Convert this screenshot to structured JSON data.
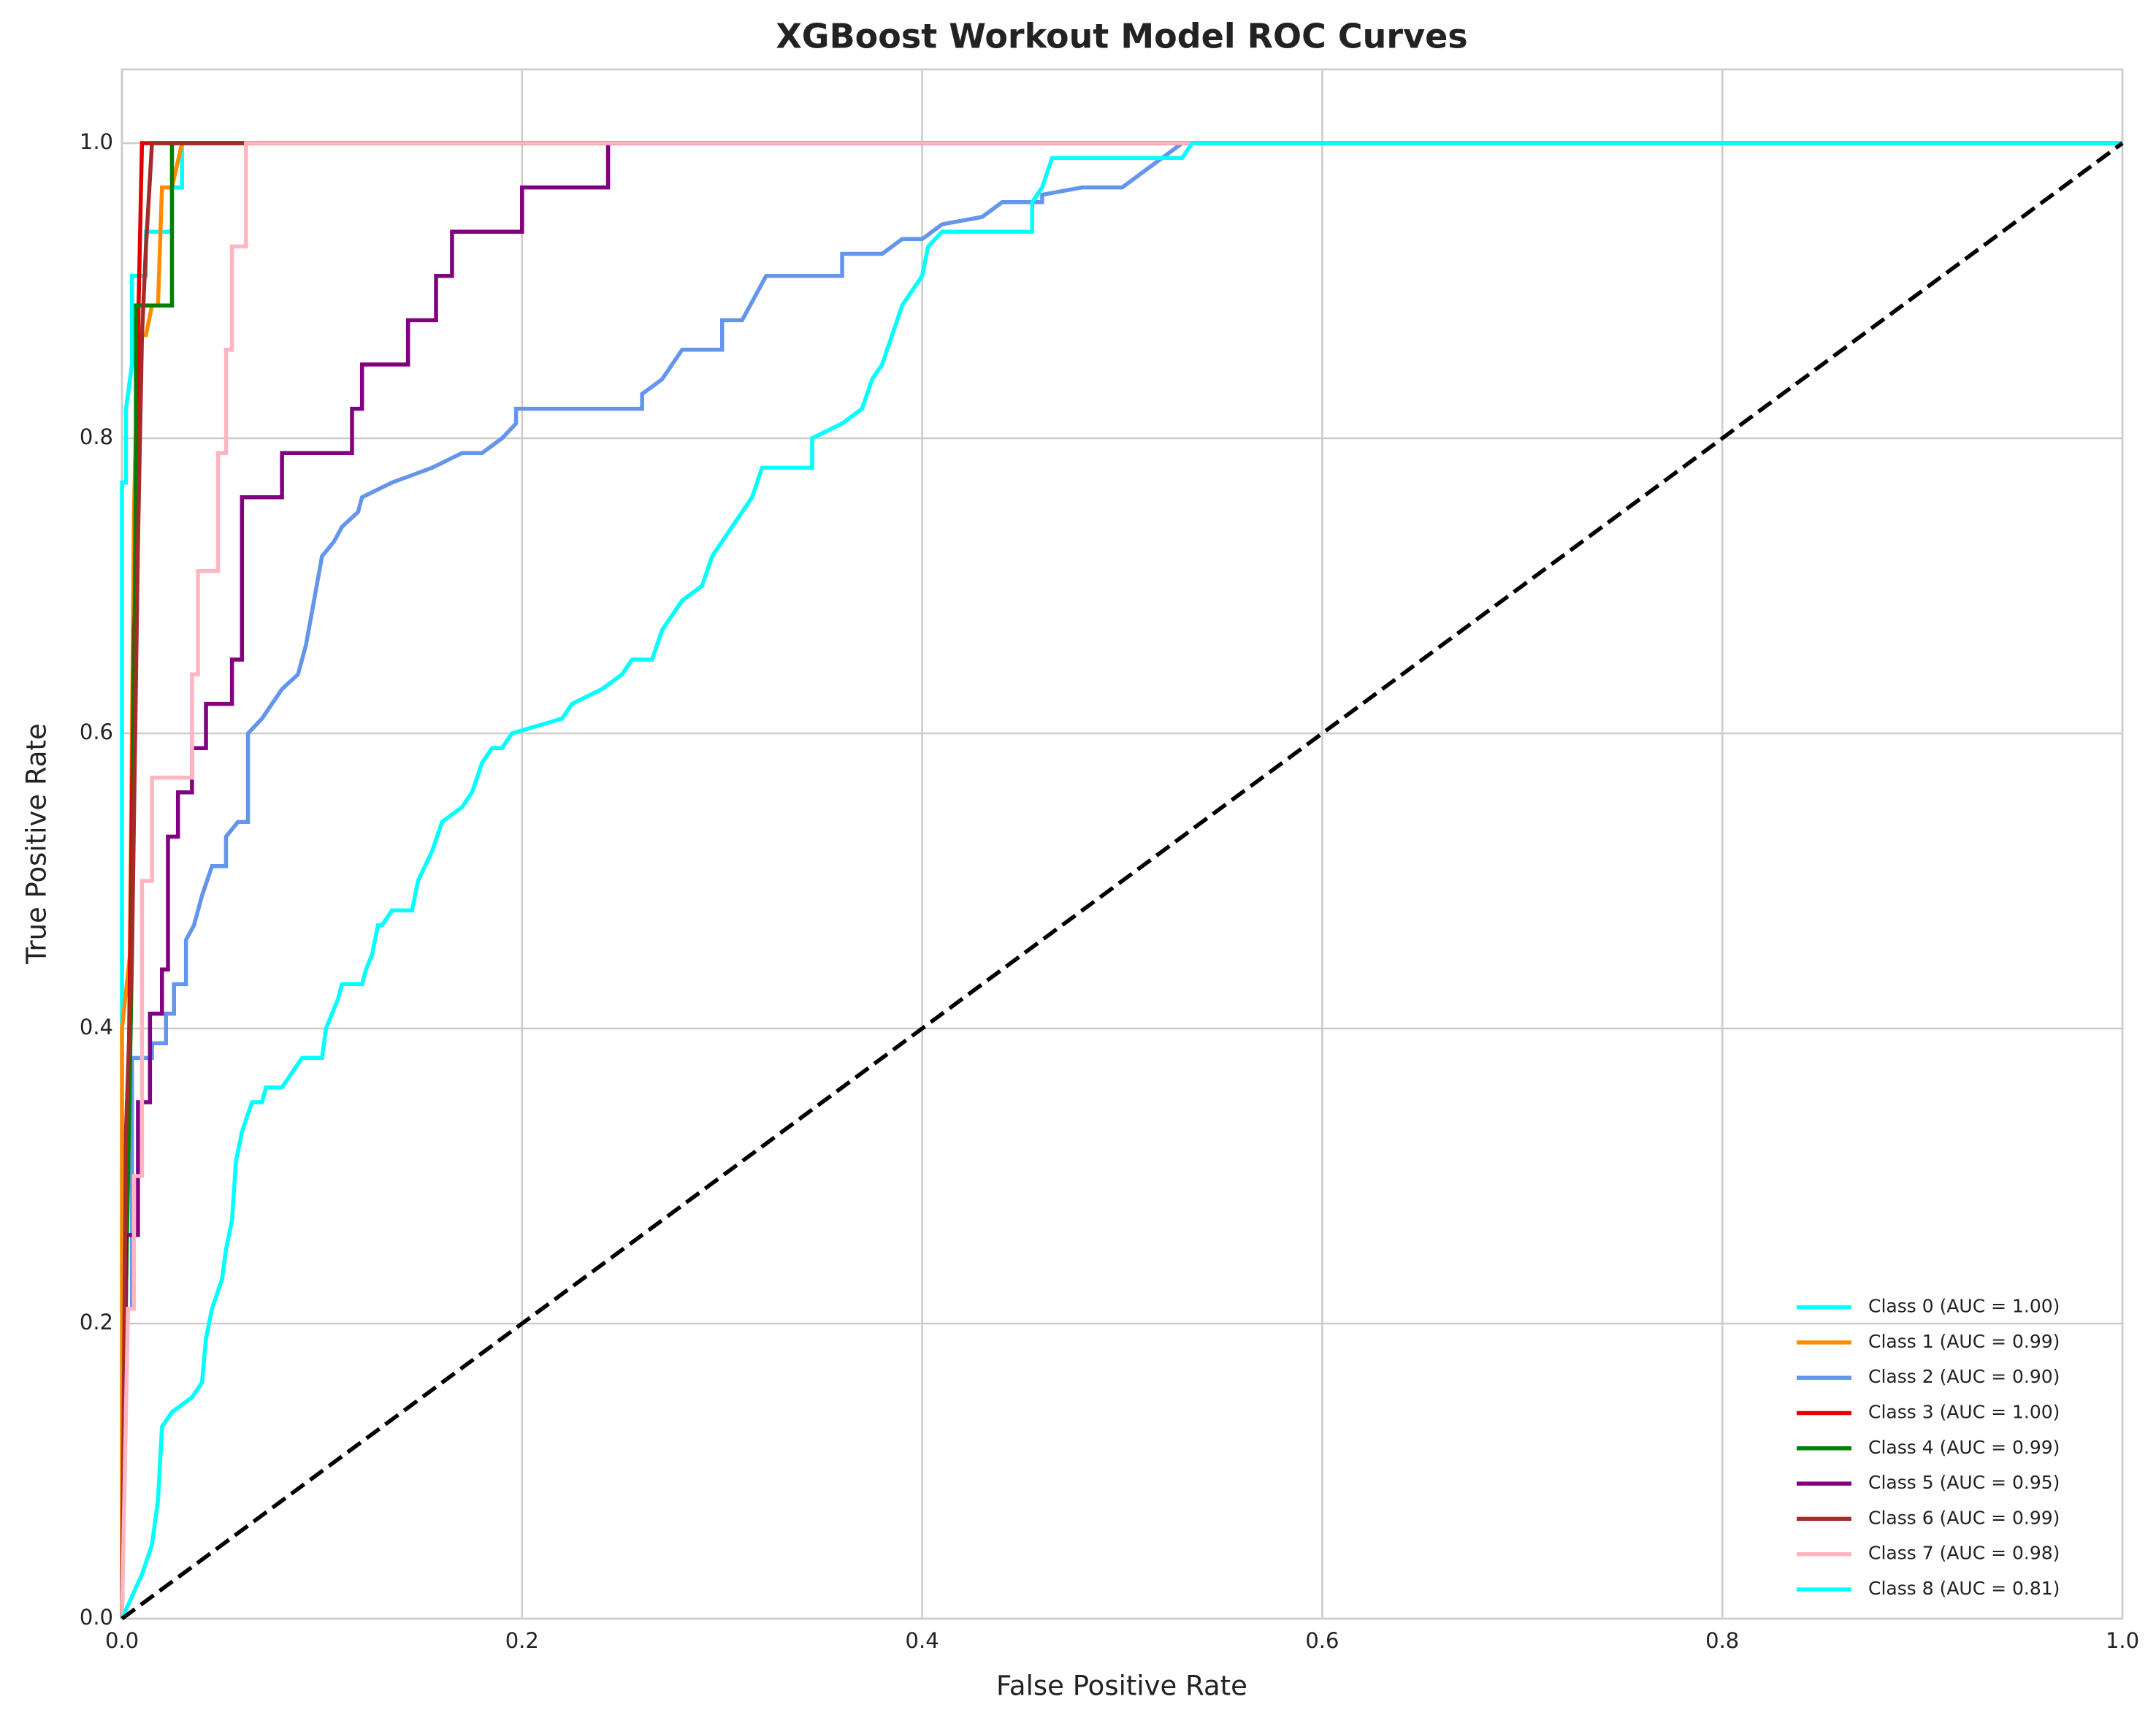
{
  "chart_data": {
    "type": "line",
    "title": "XGBoost Workout Model ROC Curves",
    "xlabel": "False Positive Rate",
    "ylabel": "True Positive Rate",
    "xlim": [
      0,
      1
    ],
    "ylim": [
      0,
      1.05
    ],
    "xticks": [
      {
        "value": 0,
        "label": "0.0"
      },
      0.2,
      0.4,
      0.6,
      0.8,
      {
        "value": 1,
        "label": "1.0"
      }
    ],
    "yticks": [
      {
        "value": 0,
        "label": "0.0"
      },
      0.2,
      0.4,
      0.6,
      0.8,
      {
        "value": 1,
        "label": "1.0"
      }
    ],
    "grid": true,
    "legend": "lower right",
    "diagonal": {
      "x": [
        0,
        1
      ],
      "values": [
        0,
        1
      ],
      "color": "#000000"
    },
    "series": [
      {
        "name": "Class 0 (AUC = 1.00)",
        "color": "#00ffff",
        "x": [
          0,
          0,
          0.002,
          0.002,
          0.005,
          0.005,
          0.012,
          0.012,
          0.025,
          0.025,
          0.03,
          0.03,
          1
        ],
        "values": [
          0,
          0.77,
          0.77,
          0.82,
          0.85,
          0.91,
          0.91,
          0.94,
          0.94,
          0.97,
          0.97,
          1,
          1
        ]
      },
      {
        "name": "Class 1 (AUC = 0.99)",
        "color": "#ff8c00",
        "x": [
          0,
          0,
          0.004,
          0.006,
          0.008,
          0.012,
          0.015,
          0.018,
          0.02,
          0.025,
          0.03,
          1
        ],
        "values": [
          0,
          0.4,
          0.45,
          0.75,
          0.87,
          0.87,
          0.89,
          0.89,
          0.97,
          0.97,
          1,
          1
        ]
      },
      {
        "name": "Class 2 (AUC = 0.90)",
        "color": "#6495ed",
        "x": [
          0,
          0.002,
          0.005,
          0.005,
          0.015,
          0.015,
          0.022,
          0.022,
          0.026,
          0.026,
          0.032,
          0.032,
          0.036,
          0.04,
          0.045,
          0.052,
          0.052,
          0.058,
          0.063,
          0.063,
          0.07,
          0.075,
          0.08,
          0.088,
          0.092,
          0.096,
          0.1,
          0.106,
          0.11,
          0.118,
          0.12,
          0.135,
          0.155,
          0.17,
          0.18,
          0.19,
          0.197,
          0.197,
          0.26,
          0.26,
          0.27,
          0.275,
          0.28,
          0.3,
          0.3,
          0.31,
          0.318,
          0.322,
          0.36,
          0.36,
          0.38,
          0.39,
          0.4,
          0.41,
          0.43,
          0.44,
          0.46,
          0.46,
          0.48,
          0.5,
          0.51,
          0.52,
          0.53,
          1
        ],
        "values": [
          0,
          0.21,
          0.21,
          0.38,
          0.38,
          0.39,
          0.39,
          0.41,
          0.41,
          0.43,
          0.43,
          0.46,
          0.47,
          0.49,
          0.51,
          0.51,
          0.53,
          0.54,
          0.54,
          0.6,
          0.61,
          0.62,
          0.63,
          0.64,
          0.66,
          0.69,
          0.72,
          0.73,
          0.74,
          0.75,
          0.76,
          0.77,
          0.78,
          0.79,
          0.79,
          0.8,
          0.81,
          0.82,
          0.82,
          0.83,
          0.84,
          0.85,
          0.86,
          0.86,
          0.88,
          0.88,
          0.9,
          0.91,
          0.91,
          0.925,
          0.925,
          0.935,
          0.935,
          0.945,
          0.95,
          0.96,
          0.96,
          0.965,
          0.97,
          0.97,
          0.98,
          0.99,
          1,
          1
        ]
      },
      {
        "name": "Class 3 (AUC = 1.00)",
        "color": "#e00000",
        "x": [
          0,
          0.003,
          0.006,
          0.008,
          0.008,
          0.01,
          1
        ],
        "values": [
          0,
          0.33,
          0.67,
          0.73,
          0.87,
          1,
          1
        ]
      },
      {
        "name": "Class 4 (AUC = 0.99)",
        "color": "#007f00",
        "x": [
          0,
          0.002,
          0.005,
          0.007,
          0.007,
          0.025,
          0.025,
          1
        ],
        "values": [
          0,
          0.22,
          0.45,
          0.79,
          0.89,
          0.89,
          1,
          1
        ]
      },
      {
        "name": "Class 5 (AUC = 0.95)",
        "color": "#800080",
        "x": [
          0,
          0.002,
          0.008,
          0.008,
          0.014,
          0.014,
          0.02,
          0.02,
          0.023,
          0.023,
          0.028,
          0.028,
          0.035,
          0.035,
          0.042,
          0.042,
          0.055,
          0.055,
          0.06,
          0.06,
          0.08,
          0.08,
          0.115,
          0.115,
          0.12,
          0.12,
          0.143,
          0.143,
          0.157,
          0.157,
          0.165,
          0.165,
          0.2,
          0.2,
          0.243,
          0.243,
          1
        ],
        "values": [
          0,
          0.26,
          0.26,
          0.35,
          0.35,
          0.41,
          0.41,
          0.44,
          0.44,
          0.53,
          0.53,
          0.56,
          0.56,
          0.59,
          0.59,
          0.62,
          0.62,
          0.65,
          0.65,
          0.76,
          0.76,
          0.79,
          0.79,
          0.82,
          0.82,
          0.85,
          0.85,
          0.88,
          0.88,
          0.91,
          0.91,
          0.94,
          0.94,
          0.97,
          0.97,
          1,
          1
        ]
      },
      {
        "name": "Class 6 (AUC = 0.99)",
        "color": "#a52a2a",
        "x": [
          0,
          0.002,
          0.005,
          0.008,
          0.01,
          0.012,
          0.015,
          0.06,
          1
        ],
        "values": [
          0,
          0.33,
          0.45,
          0.73,
          0.87,
          0.93,
          1,
          1,
          1
        ]
      },
      {
        "name": "Class 7 (AUC = 0.98)",
        "color": "#ffb6c1",
        "x": [
          0,
          0.003,
          0.006,
          0.006,
          0.01,
          0.01,
          0.015,
          0.015,
          0.035,
          0.035,
          0.038,
          0.038,
          0.048,
          0.048,
          0.052,
          0.052,
          0.055,
          0.055,
          0.062,
          0.062,
          1
        ],
        "values": [
          0,
          0.21,
          0.21,
          0.3,
          0.3,
          0.5,
          0.5,
          0.57,
          0.57,
          0.64,
          0.64,
          0.71,
          0.71,
          0.79,
          0.79,
          0.86,
          0.86,
          0.93,
          0.93,
          1,
          1
        ]
      },
      {
        "name": "Class 8 (AUC = 0.81)",
        "color": "#00ffff",
        "x": [
          0,
          0.01,
          0.015,
          0.018,
          0.02,
          0.025,
          0.035,
          0.04,
          0.042,
          0.045,
          0.05,
          0.052,
          0.055,
          0.057,
          0.06,
          0.065,
          0.07,
          0.072,
          0.08,
          0.085,
          0.09,
          0.1,
          0.102,
          0.105,
          0.108,
          0.11,
          0.12,
          0.122,
          0.125,
          0.128,
          0.13,
          0.135,
          0.145,
          0.148,
          0.155,
          0.16,
          0.17,
          0.175,
          0.18,
          0.185,
          0.19,
          0.195,
          0.22,
          0.225,
          0.24,
          0.25,
          0.255,
          0.265,
          0.27,
          0.275,
          0.28,
          0.29,
          0.295,
          0.3,
          0.31,
          0.315,
          0.32,
          0.345,
          0.345,
          0.36,
          0.37,
          0.375,
          0.38,
          0.385,
          0.39,
          0.395,
          0.4,
          0.403,
          0.41,
          0.455,
          0.455,
          0.46,
          0.465,
          0.53,
          0.535,
          1
        ],
        "values": [
          0,
          0.03,
          0.05,
          0.08,
          0.13,
          0.14,
          0.15,
          0.16,
          0.19,
          0.21,
          0.23,
          0.25,
          0.27,
          0.31,
          0.33,
          0.35,
          0.35,
          0.36,
          0.36,
          0.37,
          0.38,
          0.38,
          0.4,
          0.41,
          0.42,
          0.43,
          0.43,
          0.44,
          0.45,
          0.47,
          0.47,
          0.48,
          0.48,
          0.5,
          0.52,
          0.54,
          0.55,
          0.56,
          0.58,
          0.59,
          0.59,
          0.6,
          0.61,
          0.62,
          0.63,
          0.64,
          0.65,
          0.65,
          0.67,
          0.68,
          0.69,
          0.7,
          0.72,
          0.73,
          0.75,
          0.76,
          0.78,
          0.78,
          0.8,
          0.81,
          0.82,
          0.84,
          0.85,
          0.87,
          0.89,
          0.9,
          0.91,
          0.93,
          0.94,
          0.94,
          0.96,
          0.97,
          0.99,
          0.99,
          1,
          1
        ]
      }
    ]
  }
}
